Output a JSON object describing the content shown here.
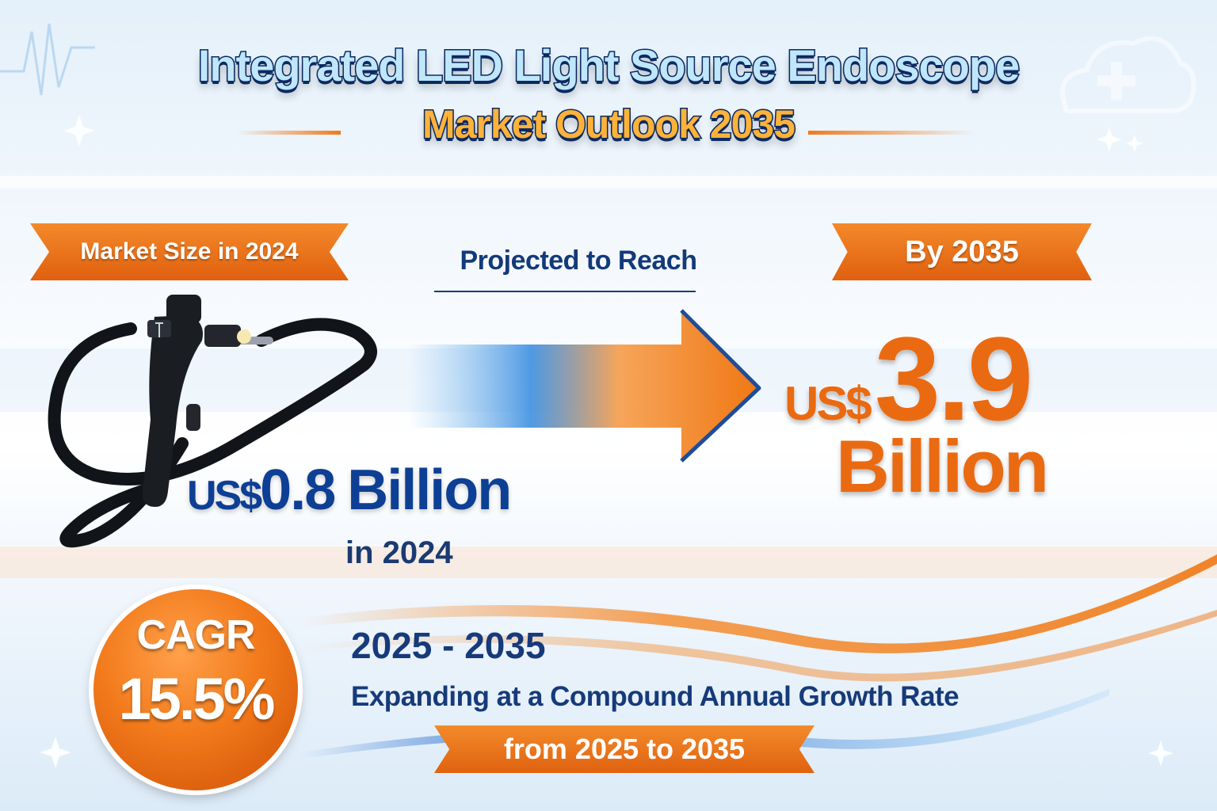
{
  "title": {
    "line1": "Integrated LED Light Source Endoscope",
    "line2": "Market Outlook 2035"
  },
  "market_size_ribbon": "Market Size in 2024",
  "projected_label": "Projected to Reach",
  "by_ribbon": "By 2035",
  "value_2024": {
    "currency": "US$",
    "amount": "0.8",
    "unit": "Billion",
    "caption": "in 2024"
  },
  "value_2035": {
    "currency": "US$",
    "amount": "3.9",
    "unit": "Billion"
  },
  "cagr": {
    "label": "CAGR",
    "value": "15.5%",
    "period": "2025 - 2035",
    "description": "Expanding at a Compound Annual Growth Rate",
    "range_banner": "from 2025 to 2035"
  },
  "icons": [
    "cloud-medical-icon",
    "endoscope-icon",
    "arrow-right-icon",
    "sparkle-icon"
  ],
  "colors": {
    "accent_orange": "#ea6a12",
    "accent_blue": "#0d3f95",
    "navy": "#0b2a62"
  }
}
